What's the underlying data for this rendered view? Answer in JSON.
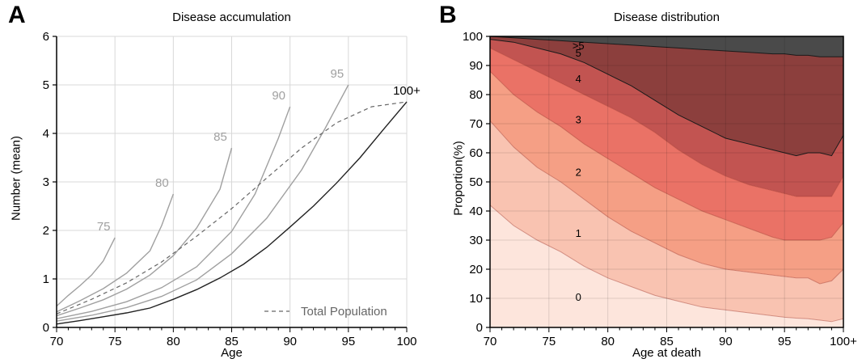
{
  "panels": {
    "a": {
      "letter": "A"
    },
    "b": {
      "letter": "B"
    }
  },
  "chart_data": [
    {
      "panel": "A",
      "type": "line",
      "title": "Disease accumulation",
      "xlabel": "Age",
      "ylabel": "Number (mean)",
      "xlim": [
        70,
        100
      ],
      "ylim": [
        0,
        6
      ],
      "xticks": [
        70,
        75,
        80,
        85,
        90,
        95,
        100
      ],
      "yticks": [
        0,
        1,
        2,
        3,
        4,
        5,
        6
      ],
      "grid": true,
      "legend": {
        "position": "bottom-right",
        "entries": [
          "Total Population"
        ]
      },
      "series": [
        {
          "name": "75",
          "color": "#a0a0a0",
          "x": [
            70,
            71,
            72,
            73,
            74,
            75
          ],
          "y": [
            0.44,
            0.66,
            0.86,
            1.08,
            1.37,
            1.85
          ]
        },
        {
          "name": "80",
          "color": "#a0a0a0",
          "x": [
            70,
            72,
            74,
            76,
            78,
            79,
            80
          ],
          "y": [
            0.32,
            0.55,
            0.8,
            1.12,
            1.58,
            2.1,
            2.75
          ]
        },
        {
          "name": "85",
          "color": "#a0a0a0",
          "x": [
            70,
            72,
            74,
            76,
            78,
            80,
            82,
            84,
            85
          ],
          "y": [
            0.24,
            0.4,
            0.57,
            0.79,
            1.08,
            1.48,
            2.05,
            2.85,
            3.7
          ]
        },
        {
          "name": "90",
          "color": "#a0a0a0",
          "x": [
            70,
            73,
            76,
            79,
            82,
            85,
            87,
            89,
            90
          ],
          "y": [
            0.18,
            0.33,
            0.53,
            0.82,
            1.25,
            1.98,
            2.75,
            3.9,
            4.55
          ]
        },
        {
          "name": "95",
          "color": "#a0a0a0",
          "x": [
            70,
            73,
            76,
            79,
            82,
            85,
            88,
            91,
            93,
            95
          ],
          "y": [
            0.13,
            0.25,
            0.41,
            0.64,
            0.98,
            1.52,
            2.25,
            3.25,
            4.1,
            5.0
          ]
        },
        {
          "name": "100+",
          "color": "#222222",
          "x": [
            70,
            72,
            74,
            76,
            78,
            80,
            82,
            84,
            86,
            88,
            90,
            92,
            94,
            96,
            98,
            100
          ],
          "y": [
            0.07,
            0.14,
            0.22,
            0.3,
            0.4,
            0.58,
            0.78,
            1.02,
            1.3,
            1.65,
            2.07,
            2.5,
            2.98,
            3.5,
            4.08,
            4.65
          ]
        },
        {
          "name": "Total Population",
          "color": "#666666",
          "dashed": true,
          "x": [
            70,
            73,
            76,
            79,
            82,
            85,
            88,
            91,
            94,
            97,
            100
          ],
          "y": [
            0.28,
            0.58,
            0.92,
            1.35,
            1.88,
            2.45,
            3.08,
            3.7,
            4.22,
            4.55,
            4.65
          ]
        }
      ]
    },
    {
      "panel": "B",
      "type": "area",
      "title": "Disease distribution",
      "xlabel": "Age at death",
      "ylabel": "Proportion(%)",
      "xlim": [
        70,
        100
      ],
      "ylim": [
        0,
        100
      ],
      "xtick_labels": [
        "70",
        "75",
        "80",
        "85",
        "90",
        "95",
        "100+"
      ],
      "yticks": [
        0,
        10,
        20,
        30,
        40,
        50,
        60,
        70,
        80,
        90,
        100
      ],
      "grid": true,
      "stacked": true,
      "x": [
        70,
        72,
        74,
        76,
        78,
        80,
        82,
        84,
        86,
        88,
        90,
        92,
        94,
        95,
        96,
        97,
        98,
        99,
        100
      ],
      "series": [
        {
          "name": "0",
          "color": "#fde5dc",
          "cumulative": [
            42,
            35,
            30,
            26,
            21,
            17,
            14,
            11,
            9,
            7,
            6,
            5,
            4,
            3.5,
            3.2,
            3,
            2.5,
            2,
            3
          ]
        },
        {
          "name": "1",
          "color": "#f9c3b1",
          "cumulative": [
            71,
            62,
            55,
            50,
            44,
            38,
            33,
            29,
            25,
            22,
            20,
            19,
            18,
            17.5,
            17,
            17,
            15,
            16,
            20
          ]
        },
        {
          "name": "2",
          "color": "#f59f85",
          "cumulative": [
            88,
            80,
            74,
            69,
            63,
            58,
            53,
            48,
            44,
            40,
            37,
            34,
            31,
            30,
            30,
            30,
            30,
            31,
            36
          ]
        },
        {
          "name": "3",
          "color": "#ea7266",
          "cumulative": [
            96,
            92,
            88,
            84,
            80,
            76,
            72,
            67,
            61,
            56,
            52,
            49,
            47,
            46,
            45,
            45,
            45,
            45,
            52
          ]
        },
        {
          "name": "4",
          "color": "#c25451",
          "cumulative": [
            99,
            98,
            96,
            94,
            91,
            87,
            83,
            78,
            73,
            69,
            65,
            63,
            61,
            60,
            59,
            60,
            60,
            59,
            66
          ]
        },
        {
          "name": "5",
          "color": "#8c3f3d",
          "cumulative": [
            100,
            99.5,
            99,
            98.5,
            98,
            97.5,
            97,
            96.5,
            96,
            95.5,
            95,
            94.5,
            94,
            94,
            93.5,
            93.5,
            93,
            93,
            93
          ]
        },
        {
          "name": ">5",
          "color": "#4a4a4a",
          "cumulative": [
            100,
            100,
            100,
            100,
            100,
            100,
            100,
            100,
            100,
            100,
            100,
            100,
            100,
            100,
            100,
            100,
            100,
            100,
            100
          ]
        }
      ]
    }
  ]
}
